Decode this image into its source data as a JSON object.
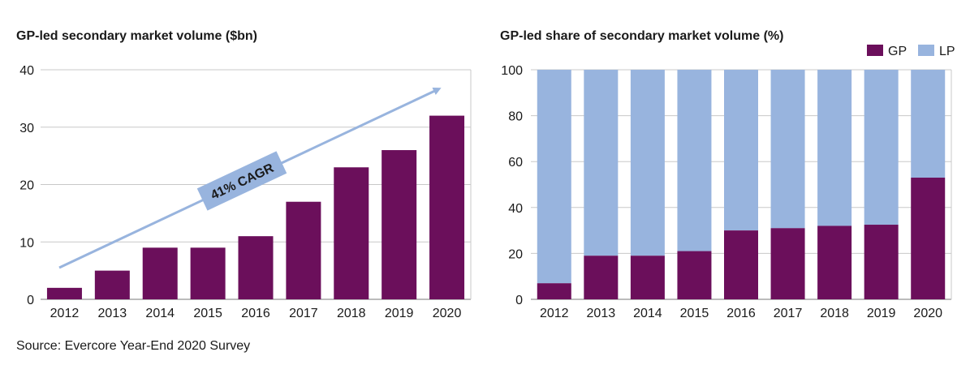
{
  "source": "Source: Evercore Year-End 2020 Survey",
  "colors": {
    "gp": "#6b0f5b",
    "lp": "#98b4de",
    "arrow": "#98b4de",
    "grid": "#c8c8c8",
    "axis": "#777777"
  },
  "chart_data": [
    {
      "type": "bar",
      "title": "GP-led secondary market volume ($bn)",
      "categories": [
        "2012",
        "2013",
        "2014",
        "2015",
        "2016",
        "2017",
        "2018",
        "2019",
        "2020"
      ],
      "values": [
        2,
        5,
        9,
        9,
        11,
        17,
        23,
        26,
        32
      ],
      "ylim": [
        0,
        40
      ],
      "yticks": [
        0,
        10,
        20,
        30,
        40
      ],
      "grid": true,
      "annotation": "41% CAGR"
    },
    {
      "type": "bar",
      "stacked": true,
      "title": "GP-led share of secondary market volume (%)",
      "categories": [
        "2012",
        "2013",
        "2014",
        "2015",
        "2016",
        "2017",
        "2018",
        "2019",
        "2020"
      ],
      "series": [
        {
          "name": "GP",
          "values": [
            7,
            19,
            19,
            21,
            30,
            31,
            32,
            32.5,
            53
          ]
        },
        {
          "name": "LP",
          "values": [
            93,
            81,
            81,
            79,
            70,
            69,
            68,
            67.5,
            47
          ]
        }
      ],
      "ylim": [
        0,
        100
      ],
      "yticks": [
        0,
        20,
        40,
        60,
        80,
        100
      ],
      "grid": true,
      "legend": "top-right"
    }
  ]
}
